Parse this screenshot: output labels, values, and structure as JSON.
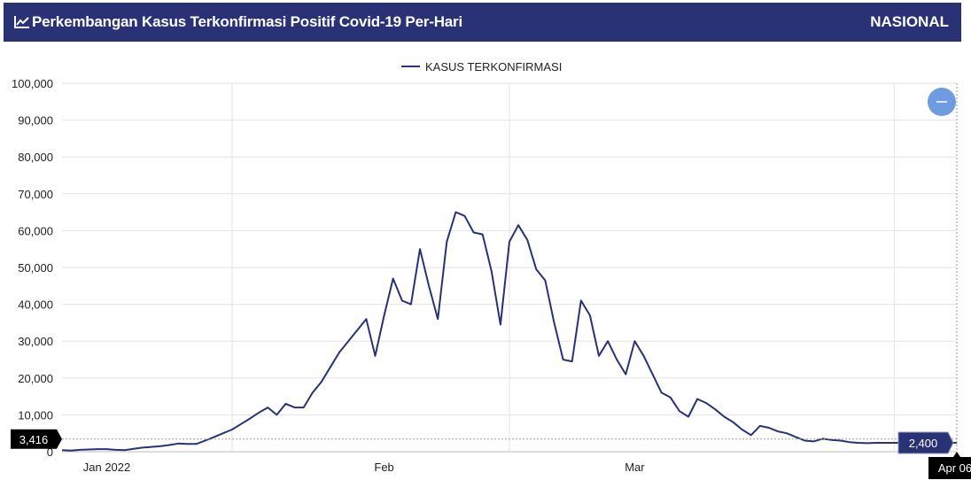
{
  "header": {
    "title": "Perkembangan Kasus Terkonfirmasi Positif Covid-19 Per-Hari",
    "scope": "NASIONAL"
  },
  "chart_data": {
    "type": "line",
    "legend": {
      "label": "KASUS TERKONFIRMASI",
      "position": "top-center"
    },
    "colors": {
      "line": "#283274",
      "header_bg": "#283274",
      "zoom_button": "#6f9be0",
      "crosshair_flag": "#000000",
      "value_flag": "#283274"
    },
    "x_labels": [
      "Jan 2022",
      "Feb",
      "Mar"
    ],
    "y_ticks": [
      "0",
      "10,000",
      "20,000",
      "30,000",
      "40,000",
      "50,000",
      "60,000",
      "70,000",
      "80,000",
      "90,000",
      "100,000"
    ],
    "ylim": [
      0,
      100000
    ],
    "grid": true,
    "crosshair": {
      "y_label": "3,416",
      "value_label": "2,400",
      "x_label": "Apr 06"
    },
    "series": [
      {
        "name": "KASUS TERKONFIRMASI",
        "x": [
          "2021-12-27",
          "2021-12-28",
          "2021-12-29",
          "2021-12-30",
          "2021-12-31",
          "2022-01-01",
          "2022-01-02",
          "2022-01-03",
          "2022-01-04",
          "2022-01-05",
          "2022-01-06",
          "2022-01-07",
          "2022-01-08",
          "2022-01-09",
          "2022-01-10",
          "2022-01-11",
          "2022-01-12",
          "2022-01-13",
          "2022-01-14",
          "2022-01-15",
          "2022-01-16",
          "2022-01-17",
          "2022-01-18",
          "2022-01-19",
          "2022-01-20",
          "2022-01-21",
          "2022-01-22",
          "2022-01-23",
          "2022-01-24",
          "2022-01-25",
          "2022-01-26",
          "2022-01-27",
          "2022-01-28",
          "2022-01-29",
          "2022-01-30",
          "2022-01-31",
          "2022-02-01",
          "2022-02-02",
          "2022-02-03",
          "2022-02-04",
          "2022-02-05",
          "2022-02-06",
          "2022-02-07",
          "2022-02-08",
          "2022-02-09",
          "2022-02-10",
          "2022-02-11",
          "2022-02-12",
          "2022-02-13",
          "2022-02-14",
          "2022-02-15",
          "2022-02-16",
          "2022-02-17",
          "2022-02-18",
          "2022-02-19",
          "2022-02-20",
          "2022-02-21",
          "2022-02-22",
          "2022-02-23",
          "2022-02-24",
          "2022-02-25",
          "2022-02-26",
          "2022-02-27",
          "2022-02-28",
          "2022-03-01",
          "2022-03-02",
          "2022-03-03",
          "2022-03-04",
          "2022-03-05",
          "2022-03-06",
          "2022-03-07",
          "2022-03-08",
          "2022-03-09",
          "2022-03-10",
          "2022-03-11",
          "2022-03-12",
          "2022-03-13",
          "2022-03-14",
          "2022-03-15",
          "2022-03-16",
          "2022-03-17",
          "2022-03-18",
          "2022-03-19",
          "2022-03-20",
          "2022-03-21",
          "2022-03-22",
          "2022-03-23",
          "2022-03-24",
          "2022-03-25",
          "2022-03-26",
          "2022-03-27",
          "2022-03-28",
          "2022-03-29",
          "2022-03-30",
          "2022-03-31",
          "2022-04-01",
          "2022-04-02",
          "2022-04-03",
          "2022-04-04",
          "2022-04-05",
          "2022-04-06"
        ],
        "values": [
          400,
          300,
          500,
          600,
          700,
          700,
          500,
          400,
          800,
          1100,
          1300,
          1500,
          1800,
          2200,
          2100,
          2100,
          3000,
          4000,
          5000,
          6000,
          7500,
          9000,
          10600,
          12000,
          10000,
          13000,
          12000,
          12000,
          16000,
          19000,
          23000,
          27000,
          30000,
          33000,
          36000,
          26000,
          37000,
          47000,
          41000,
          40000,
          55000,
          45000,
          36000,
          57000,
          65000,
          64000,
          59500,
          59000,
          49000,
          34500,
          57000,
          61500,
          57500,
          49500,
          46500,
          35000,
          25000,
          24500,
          41000,
          37000,
          26000,
          30000,
          25000,
          21000,
          30000,
          26000,
          21000,
          16000,
          14700,
          11000,
          9500,
          14300,
          13200,
          11500,
          9500,
          8000,
          6000,
          4500,
          7000,
          6500,
          5500,
          5000,
          4000,
          3000,
          2800,
          3500,
          3200,
          3000,
          2600,
          2400,
          2300,
          2400,
          2400,
          2400,
          2400,
          2400,
          2400,
          2400,
          2400,
          2400,
          2400
        ]
      }
    ]
  }
}
